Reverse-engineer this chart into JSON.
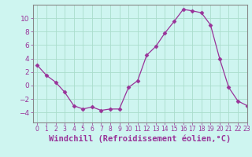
{
  "x": [
    0,
    1,
    2,
    3,
    4,
    5,
    6,
    7,
    8,
    9,
    10,
    11,
    12,
    13,
    14,
    15,
    16,
    17,
    18,
    19,
    20,
    21,
    22,
    23
  ],
  "y": [
    3.0,
    1.5,
    0.5,
    -1.0,
    -3.0,
    -3.5,
    -3.2,
    -3.7,
    -3.5,
    -3.5,
    -0.3,
    0.7,
    4.5,
    5.8,
    7.8,
    9.5,
    11.3,
    11.1,
    10.8,
    9.0,
    4.0,
    -0.3,
    -2.3,
    -3.0
  ],
  "line_color": "#993399",
  "marker": "D",
  "marker_size": 2.5,
  "bg_color": "#cef5f0",
  "grid_color": "#aaddcc",
  "xlabel": "Windchill (Refroidissement éolien,°C)",
  "xlabel_fontsize": 7.5,
  "ylim": [
    -5.5,
    12
  ],
  "xlim": [
    -0.5,
    23
  ],
  "yticks": [
    -4,
    -2,
    0,
    2,
    4,
    6,
    8,
    10
  ],
  "xticks": [
    0,
    1,
    2,
    3,
    4,
    5,
    6,
    7,
    8,
    9,
    10,
    11,
    12,
    13,
    14,
    15,
    16,
    17,
    18,
    19,
    20,
    21,
    22,
    23
  ],
  "tick_fontsize": 6,
  "spine_color": "#888888"
}
